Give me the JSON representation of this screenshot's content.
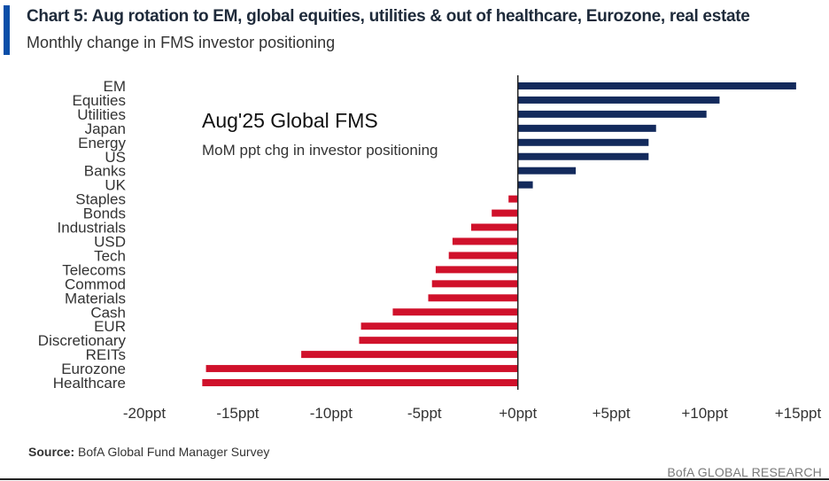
{
  "header": {
    "title": "Chart 5: Aug rotation to EM, global equities, utilities & out of healthcare, Eurozone, real estate",
    "subtitle": "Monthly change in FMS investor positioning"
  },
  "chart_data": {
    "type": "bar",
    "orientation": "horizontal",
    "inner_title": "Aug'25 Global FMS",
    "inner_subtitle": "MoM ppt chg in investor positioning",
    "categories": [
      "EM",
      "Equities",
      "Utilities",
      "Japan",
      "Energy",
      "US",
      "Banks",
      "UK",
      "Staples",
      "Bonds",
      "Industrials",
      "USD",
      "Tech",
      "Telecoms",
      "Commod",
      "Materials",
      "Cash",
      "EUR",
      "Discretionary",
      "REITs",
      "Eurozone",
      "Healthcare"
    ],
    "values": [
      14.9,
      10.8,
      10.1,
      7.4,
      7.0,
      7.0,
      3.1,
      0.8,
      -0.5,
      -1.4,
      -2.5,
      -3.5,
      -3.7,
      -4.4,
      -4.6,
      -4.8,
      -6.7,
      -8.4,
      -8.5,
      -11.6,
      -16.7,
      -16.9
    ],
    "xlim": [
      -20,
      15
    ],
    "xticks": [
      -20,
      -15,
      -10,
      -5,
      0,
      5,
      10,
      15
    ],
    "xtick_labels": [
      "-20ppt",
      "-15ppt",
      "-10ppt",
      "-5ppt",
      "+0ppt",
      "+5ppt",
      "+10ppt",
      "+15ppt"
    ],
    "colors": {
      "positive": "#132a5c",
      "negative": "#d0112b",
      "axis": "#222222"
    },
    "grid": false,
    "legend": "none"
  },
  "footer": {
    "source_label": "Source:",
    "source_text": " BofA Global Fund Manager Survey",
    "brand": "BofA GLOBAL RESEARCH"
  }
}
